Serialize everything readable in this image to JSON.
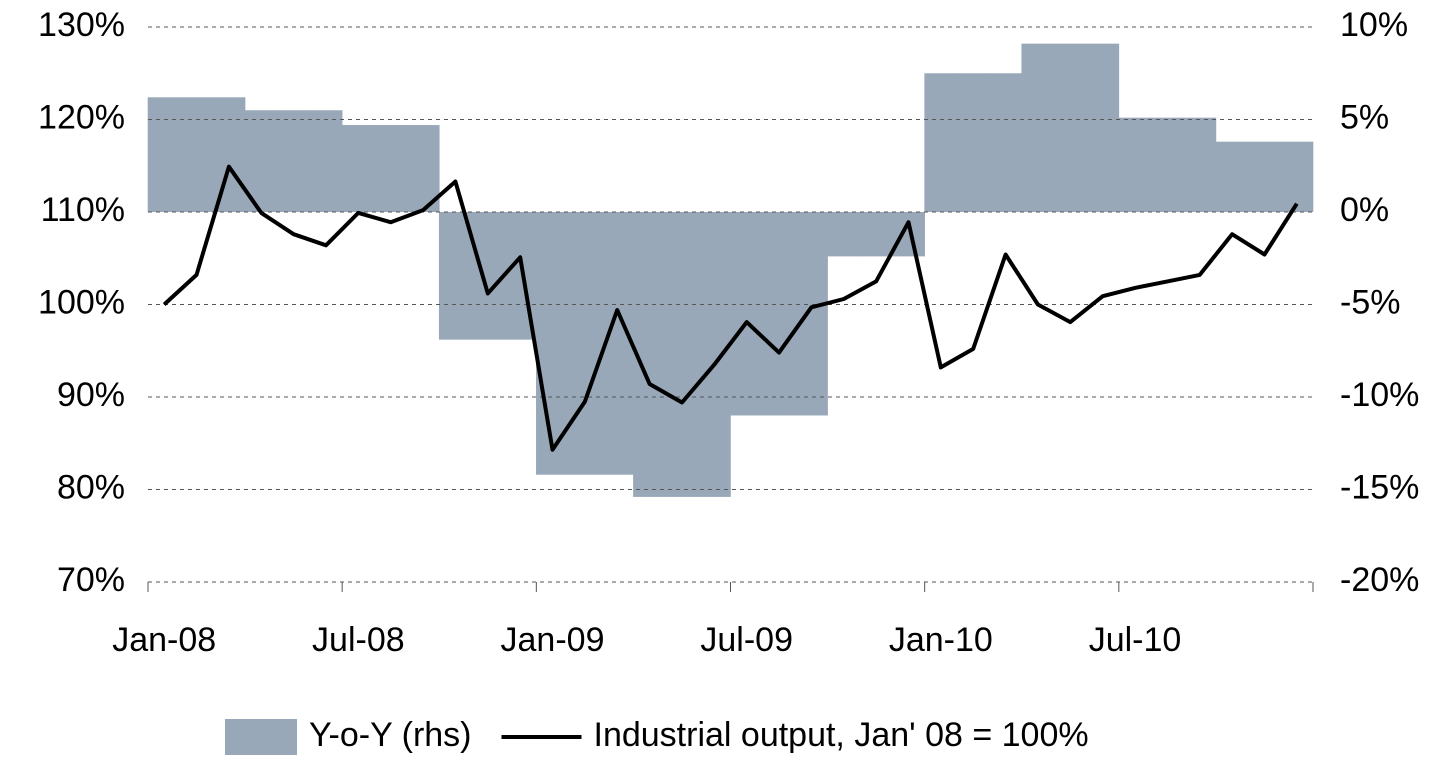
{
  "chart_data": {
    "type": "bar-line",
    "categories": [
      "Jan-08",
      null,
      null,
      null,
      null,
      null,
      "Jul-08",
      null,
      null,
      null,
      null,
      null,
      "Jan-09",
      null,
      null,
      null,
      null,
      null,
      "Jul-09",
      null,
      null,
      null,
      null,
      null,
      "Jan-10",
      null,
      null,
      null,
      null,
      null,
      "Jul-10",
      null,
      null,
      null,
      null,
      null
    ],
    "series": [
      {
        "name": "Y-o-Y (rhs)",
        "type": "bar",
        "axis": "y2",
        "color": "#98a8b8",
        "values": [
          6.2,
          6.2,
          6.2,
          5.5,
          5.5,
          5.5,
          4.7,
          4.7,
          4.7,
          -6.9,
          -6.9,
          -6.9,
          -14.2,
          -14.2,
          -14.2,
          -15.4,
          -15.4,
          -15.4,
          -11.0,
          -11.0,
          -11.0,
          -2.4,
          -2.4,
          -2.4,
          7.5,
          7.5,
          7.5,
          9.1,
          9.1,
          9.1,
          5.1,
          5.1,
          5.1,
          3.8,
          3.8,
          3.8
        ]
      },
      {
        "name": "Industrial output, Jan' 08 = 100%",
        "type": "line",
        "color": "#000000",
        "values": [
          100,
          103.2,
          114.9,
          109.9,
          107.6,
          106.4,
          109.9,
          108.9,
          110.2,
          113.3,
          101.2,
          105.1,
          84.3,
          89.5,
          99.4,
          91.4,
          89.4,
          93.5,
          98.1,
          94.8,
          99.7,
          100.6,
          102.5,
          108.9,
          93.2,
          95.2,
          105.4,
          100,
          98.1,
          100.9,
          101.8,
          102.5,
          103.2,
          107.6,
          105.4,
          110.9
        ]
      }
    ],
    "ylim": [
      70,
      130
    ],
    "yticks": [
      {
        "value": 70,
        "label": "70%"
      },
      {
        "value": 80,
        "label": "80%"
      },
      {
        "value": 90,
        "label": "90%"
      },
      {
        "value": 100,
        "label": "100%"
      },
      {
        "value": 110,
        "label": "110%"
      },
      {
        "value": 120,
        "label": "120%"
      },
      {
        "value": 130,
        "label": "130%"
      }
    ],
    "y2lim": [
      -20,
      10
    ],
    "y2ticks": [
      {
        "value": -20,
        "label": "-20%"
      },
      {
        "value": -15,
        "label": "-15%"
      },
      {
        "value": -10,
        "label": "-10%"
      },
      {
        "value": -5,
        "label": "-5%"
      },
      {
        "value": 0,
        "label": "0%"
      },
      {
        "value": 5,
        "label": "5%"
      },
      {
        "value": 10,
        "label": "10%"
      }
    ],
    "grid": true,
    "legend": "bottom"
  }
}
